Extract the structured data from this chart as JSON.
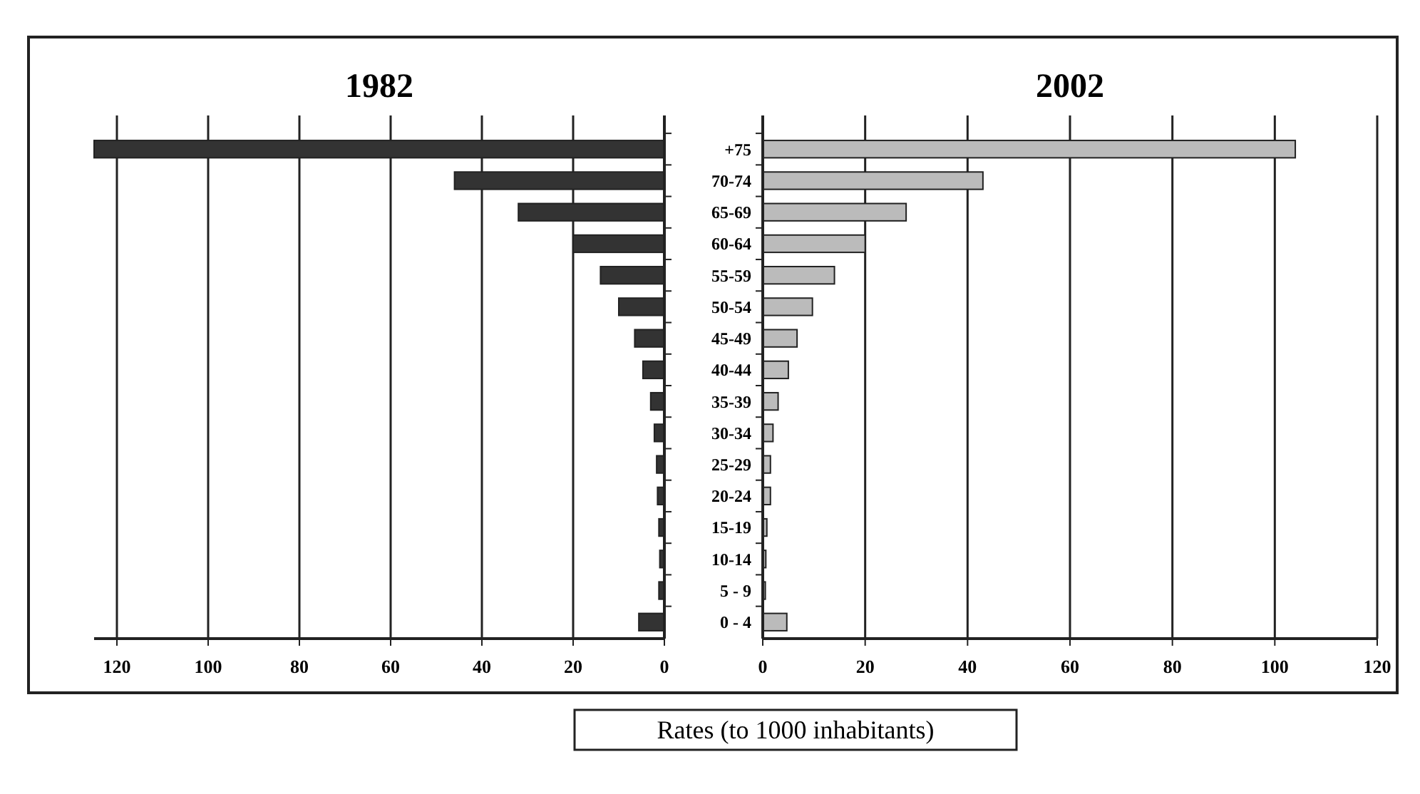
{
  "chart_data": [
    {
      "type": "bar",
      "orientation": "horizontal",
      "title": "1982",
      "categories": [
        null,
        null,
        null,
        null,
        null,
        null,
        null,
        null,
        null,
        null,
        null,
        null,
        null,
        null,
        null,
        null
      ],
      "series": [
        {
          "color": "#333333",
          "values": [
            125,
            46,
            32,
            20,
            14,
            10,
            6.5,
            4.7,
            3,
            2.2,
            1.7,
            1.5,
            1.2,
            1,
            1.2,
            5.6
          ]
        }
      ],
      "xlim": [
        125,
        0
      ],
      "xticks": [
        120,
        100,
        80,
        60,
        40,
        20,
        0
      ],
      "grid": "x"
    },
    {
      "type": "bar",
      "orientation": "horizontal",
      "title": "2002",
      "xlabel": "Rates (to 1000 inhabitants)",
      "categories": [
        "+75",
        "70-74",
        "65-69",
        "60-64",
        "55-59",
        "50-54",
        "45-49",
        "40-44",
        "35-39",
        "30-34",
        "25-29",
        "20-24",
        "15-19",
        "10-14",
        "5 - 9",
        "0 - 4"
      ],
      "series": [
        {
          "color": "#bbbbbb",
          "values": [
            104,
            43,
            28,
            20,
            14,
            9.7,
            6.7,
            5,
            3,
            2,
            1.5,
            1.5,
            0.8,
            0.6,
            0.5,
            4.7
          ]
        }
      ],
      "xlim": [
        0,
        120
      ],
      "xticks": [
        0,
        20,
        40,
        60,
        80,
        100,
        120
      ],
      "grid": "x"
    }
  ]
}
